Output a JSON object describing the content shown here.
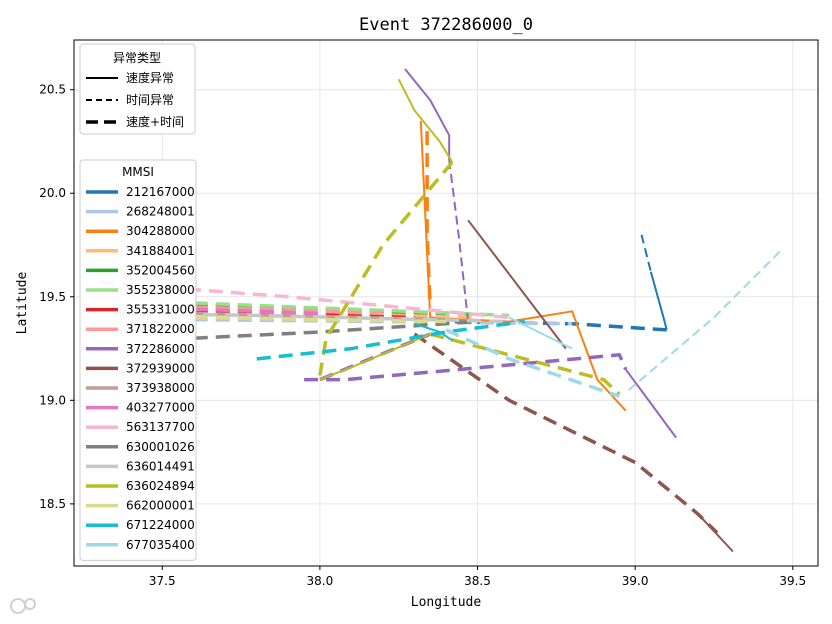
{
  "chart_data": {
    "type": "line",
    "title": "Event 372286000_0",
    "xlabel": "Longitude",
    "ylabel": "Latitude",
    "xlim": [
      37.22,
      39.58
    ],
    "ylim": [
      18.2,
      20.74
    ],
    "xticks": [
      "37.5",
      "38.0",
      "38.5",
      "39.0",
      "39.5"
    ],
    "yticks": [
      "18.5",
      "19.0",
      "19.5",
      "20.0",
      "20.5"
    ],
    "grid": true,
    "style_legend": {
      "title": "异常类型",
      "placement": "top-left",
      "entries": [
        {
          "label": "速度异常",
          "dash": "solid"
        },
        {
          "label": "时间异常",
          "dash": "dashed"
        },
        {
          "label": "速度+时间",
          "dash": "thick-dashed"
        }
      ]
    },
    "series_legend": {
      "title": "MMSI",
      "placement": "left"
    },
    "series": [
      {
        "name": "212167000",
        "color": "#1f77b4",
        "segments": [
          {
            "style": "dashed",
            "points": [
              [
                39.02,
                19.8
              ],
              [
                39.05,
                19.62
              ]
            ]
          },
          {
            "style": "solid",
            "points": [
              [
                39.05,
                19.62
              ],
              [
                39.09,
                19.4
              ],
              [
                39.1,
                19.34
              ]
            ]
          },
          {
            "style": "thick",
            "points": [
              [
                39.1,
                19.34
              ],
              [
                38.8,
                19.37
              ],
              [
                38.4,
                19.38
              ]
            ]
          }
        ]
      },
      {
        "name": "268248001",
        "color": "#aec7e8",
        "segments": [
          {
            "style": "thick",
            "points": [
              [
                37.6,
                19.39
              ],
              [
                38.2,
                19.38
              ],
              [
                38.8,
                19.37
              ]
            ]
          }
        ]
      },
      {
        "name": "304288000",
        "color": "#ff7f0e",
        "segments": [
          {
            "style": "solid",
            "points": [
              [
                38.32,
                20.35
              ],
              [
                38.35,
                19.4
              ],
              [
                38.6,
                19.38
              ],
              [
                38.8,
                19.43
              ],
              [
                38.88,
                19.1
              ],
              [
                38.97,
                18.95
              ]
            ]
          },
          {
            "style": "thick",
            "points": [
              [
                38.34,
                20.3
              ],
              [
                38.34,
                19.8
              ],
              [
                38.35,
                19.45
              ]
            ]
          }
        ]
      },
      {
        "name": "341884001",
        "color": "#ffbb78",
        "segments": [
          {
            "style": "thick",
            "points": [
              [
                37.6,
                19.44
              ],
              [
                38.5,
                19.4
              ]
            ]
          }
        ]
      },
      {
        "name": "352004560",
        "color": "#2ca02c",
        "segments": [
          {
            "style": "thick",
            "points": [
              [
                37.6,
                19.46
              ],
              [
                38.4,
                19.42
              ]
            ]
          }
        ]
      },
      {
        "name": "355238000",
        "color": "#98df8a",
        "segments": [
          {
            "style": "thick",
            "points": [
              [
                37.6,
                19.47
              ],
              [
                38.6,
                19.41
              ]
            ]
          }
        ]
      },
      {
        "name": "355331000",
        "color": "#d62728",
        "segments": [
          {
            "style": "thick",
            "points": [
              [
                37.6,
                19.43
              ],
              [
                38.3,
                19.4
              ]
            ]
          }
        ]
      },
      {
        "name": "371822000",
        "color": "#ff9896",
        "segments": [
          {
            "style": "thick",
            "points": [
              [
                37.6,
                19.45
              ],
              [
                38.2,
                19.42
              ]
            ]
          }
        ]
      },
      {
        "name": "372286000",
        "color": "#9467bd",
        "segments": [
          {
            "style": "solid",
            "points": [
              [
                38.27,
                20.6
              ],
              [
                38.35,
                20.45
              ],
              [
                38.41,
                20.28
              ],
              [
                38.41,
                20.16
              ]
            ]
          },
          {
            "style": "dashed",
            "points": [
              [
                38.41,
                20.16
              ],
              [
                38.44,
                19.8
              ],
              [
                38.47,
                19.38
              ]
            ]
          },
          {
            "style": "thick",
            "points": [
              [
                37.95,
                19.1
              ],
              [
                38.08,
                19.1
              ],
              [
                38.45,
                19.15
              ],
              [
                38.95,
                19.22
              ],
              [
                38.97,
                19.15
              ]
            ]
          },
          {
            "style": "solid",
            "points": [
              [
                38.97,
                19.15
              ],
              [
                39.13,
                18.82
              ]
            ]
          },
          {
            "style": "thick",
            "points": [
              [
                38.0,
                19.1
              ],
              [
                38.35,
                19.32
              ]
            ]
          }
        ]
      },
      {
        "name": "372939000",
        "color": "#8c564b",
        "segments": [
          {
            "style": "solid",
            "points": [
              [
                38.47,
                19.87
              ],
              [
                38.78,
                19.25
              ]
            ]
          },
          {
            "style": "thick",
            "points": [
              [
                38.3,
                19.32
              ],
              [
                38.6,
                19.0
              ],
              [
                39.0,
                18.7
              ],
              [
                39.2,
                18.45
              ],
              [
                39.26,
                18.36
              ]
            ]
          },
          {
            "style": "solid",
            "points": [
              [
                39.2,
                18.45
              ],
              [
                39.31,
                18.27
              ]
            ]
          }
        ]
      },
      {
        "name": "373938000",
        "color": "#c49c94",
        "segments": [
          {
            "style": "thick",
            "points": [
              [
                37.6,
                19.42
              ],
              [
                38.4,
                19.39
              ]
            ]
          }
        ]
      },
      {
        "name": "403277000",
        "color": "#e377c2",
        "segments": [
          {
            "style": "thick",
            "points": [
              [
                37.6,
                19.44
              ],
              [
                38.0,
                19.42
              ]
            ]
          }
        ]
      },
      {
        "name": "563137700",
        "color": "#f7b6d2",
        "segments": [
          {
            "style": "thick",
            "points": [
              [
                37.3,
                19.57
              ],
              [
                37.9,
                19.5
              ],
              [
                38.6,
                19.4
              ]
            ]
          }
        ]
      },
      {
        "name": "630001026",
        "color": "#7f7f7f",
        "segments": [
          {
            "style": "thick",
            "points": [
              [
                37.6,
                19.3
              ],
              [
                38.0,
                19.33
              ],
              [
                38.5,
                19.38
              ]
            ]
          }
        ]
      },
      {
        "name": "636014491",
        "color": "#c7c7c7",
        "segments": [
          {
            "style": "thick",
            "points": [
              [
                37.35,
                19.42
              ],
              [
                37.8,
                19.41
              ],
              [
                38.6,
                19.38
              ]
            ]
          }
        ]
      },
      {
        "name": "636024894",
        "color": "#bcbd22",
        "segments": [
          {
            "style": "solid",
            "points": [
              [
                38.25,
                20.55
              ],
              [
                38.3,
                20.4
              ],
              [
                38.38,
                20.25
              ],
              [
                38.42,
                20.15
              ]
            ]
          },
          {
            "style": "thick",
            "points": [
              [
                38.42,
                20.15
              ],
              [
                38.2,
                19.75
              ],
              [
                38.02,
                19.3
              ],
              [
                38.0,
                19.12
              ]
            ]
          },
          {
            "style": "solid",
            "points": [
              [
                38.0,
                19.1
              ],
              [
                38.1,
                19.16
              ],
              [
                38.35,
                19.32
              ]
            ]
          },
          {
            "style": "thick",
            "points": [
              [
                38.35,
                19.32
              ],
              [
                38.9,
                19.1
              ],
              [
                38.95,
                19.03
              ]
            ]
          }
        ]
      },
      {
        "name": "662000001",
        "color": "#dbdb8d",
        "segments": [
          {
            "style": "thick",
            "points": [
              [
                37.6,
                19.4
              ],
              [
                38.4,
                19.38
              ]
            ]
          }
        ]
      },
      {
        "name": "671224000",
        "color": "#17becf",
        "segments": [
          {
            "style": "thick",
            "points": [
              [
                37.8,
                19.2
              ],
              [
                38.1,
                19.25
              ],
              [
                38.4,
                19.33
              ],
              [
                38.65,
                19.38
              ]
            ]
          },
          {
            "style": "solid",
            "points": [
              [
                38.3,
                19.37
              ],
              [
                38.38,
                19.33
              ],
              [
                38.42,
                19.29
              ]
            ]
          }
        ]
      },
      {
        "name": "677035400",
        "color": "#9edae5",
        "segments": [
          {
            "style": "dashed",
            "points": [
              [
                38.98,
                19.05
              ],
              [
                39.25,
                19.4
              ],
              [
                39.46,
                19.72
              ]
            ]
          },
          {
            "style": "thick",
            "points": [
              [
                38.4,
                19.34
              ],
              [
                38.6,
                19.2
              ],
              [
                38.95,
                19.02
              ]
            ]
          },
          {
            "style": "solid",
            "points": [
              [
                38.6,
                19.4
              ],
              [
                38.8,
                19.25
              ]
            ]
          }
        ]
      }
    ]
  }
}
